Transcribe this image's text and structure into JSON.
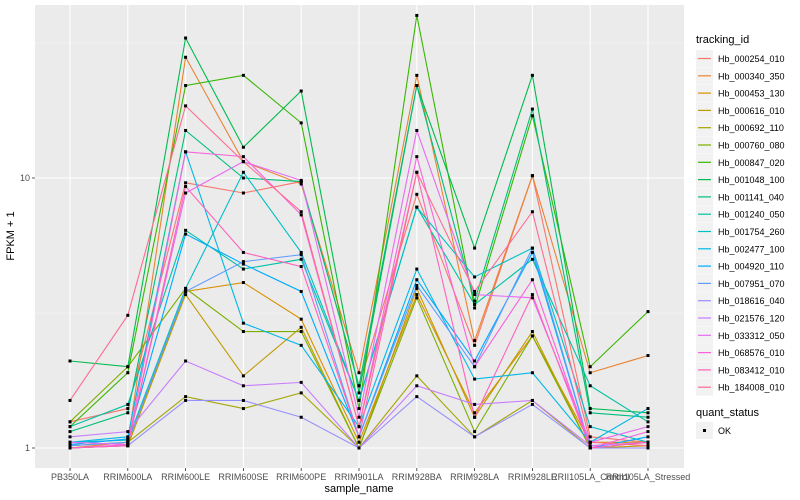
{
  "chart_data": {
    "type": "line",
    "title": "",
    "xlabel": "sample_name",
    "ylabel": "FPKM + 1",
    "yscale": "log10",
    "ylim": [
      0.9,
      45
    ],
    "yticks": [
      1,
      10
    ],
    "ytick_labels": [
      "1",
      "10"
    ],
    "grid": true,
    "legend_position": "right",
    "categories": [
      "PB350LA",
      "RRIM600LA",
      "RRIM600LE",
      "RRIM600SE",
      "RRIM600PE",
      "RRIM901LA",
      "RRIM928BA",
      "RRIM928LA",
      "RRIM928LE",
      "RRII105LA_Control",
      "RRII105LA_Stressed"
    ],
    "color_legend_title": "tracking_id",
    "shape_legend_title": "quant_status",
    "shape_legend_items": [
      {
        "label": "OK",
        "shape": "square"
      }
    ],
    "series": [
      {
        "name": "Hb_000254_010",
        "color": "#F8766D",
        "values": [
          1.25,
          1.4,
          9.6,
          8.8,
          9.7,
          1.7,
          8.7,
          2.4,
          10.2,
          1.1,
          1.05
        ]
      },
      {
        "name": "Hb_000340_350",
        "color": "#EA8331",
        "values": [
          1.0,
          1.05,
          28.0,
          11.5,
          9.5,
          1.9,
          24.0,
          2.5,
          10.2,
          1.9,
          2.2
        ]
      },
      {
        "name": "Hb_000453_130",
        "color": "#D89000",
        "values": [
          1.0,
          1.02,
          3.8,
          4.1,
          3.0,
          1.05,
          3.7,
          1.35,
          2.6,
          1.05,
          1.05
        ]
      },
      {
        "name": "Hb_000616_010",
        "color": "#C09B00",
        "values": [
          1.0,
          1.02,
          3.7,
          1.85,
          2.8,
          1.0,
          3.9,
          1.3,
          2.7,
          1.0,
          1.02
        ]
      },
      {
        "name": "Hb_000692_110",
        "color": "#A3A500",
        "values": [
          1.02,
          1.05,
          1.55,
          1.4,
          1.6,
          1.0,
          1.85,
          1.1,
          1.5,
          1.0,
          1.0
        ]
      },
      {
        "name": "Hb_000760_080",
        "color": "#7CAE00",
        "values": [
          1.25,
          2.0,
          3.9,
          2.7,
          2.7,
          1.0,
          3.6,
          1.15,
          2.6,
          1.0,
          1.0
        ]
      },
      {
        "name": "Hb_000847_020",
        "color": "#39B600",
        "values": [
          1.2,
          1.9,
          22.0,
          24.0,
          16.0,
          1.4,
          40.0,
          3.3,
          17.0,
          2.0,
          3.2
        ]
      },
      {
        "name": "Hb_001048_100",
        "color": "#00BB4E",
        "values": [
          2.1,
          2.0,
          33.0,
          13.0,
          21.0,
          1.6,
          22.0,
          5.5,
          24.0,
          1.4,
          1.35
        ]
      },
      {
        "name": "Hb_001141_040",
        "color": "#00BF7D",
        "values": [
          1.15,
          1.35,
          15.0,
          10.0,
          9.7,
          1.7,
          22.0,
          3.5,
          18.0,
          1.35,
          1.3
        ]
      },
      {
        "name": "Hb_001240_050",
        "color": "#00C1A3",
        "values": [
          1.2,
          1.45,
          6.4,
          4.6,
          5.0,
          1.5,
          7.8,
          3.4,
          5.0,
          1.7,
          1.25
        ]
      },
      {
        "name": "Hb_001754_260",
        "color": "#00BFC4",
        "values": [
          1.05,
          1.07,
          3.9,
          10.5,
          5.3,
          1.5,
          7.8,
          4.3,
          5.5,
          1.2,
          1.05
        ]
      },
      {
        "name": "Hb_002477_100",
        "color": "#00B8E7",
        "values": [
          1.05,
          1.1,
          12.5,
          2.9,
          2.4,
          1.2,
          4.6,
          1.8,
          1.9,
          1.05,
          1.4
        ]
      },
      {
        "name": "Hb_004920_110",
        "color": "#00A9FF",
        "values": [
          1.03,
          1.08,
          6.2,
          4.8,
          3.8,
          1.1,
          4.2,
          2.1,
          5.3,
          1.0,
          1.1
        ]
      },
      {
        "name": "Hb_007951_070",
        "color": "#619CFF",
        "values": [
          1.02,
          1.05,
          3.8,
          4.9,
          5.2,
          1.1,
          4.0,
          2.0,
          5.5,
          1.0,
          1.05
        ]
      },
      {
        "name": "Hb_018616_040",
        "color": "#9590FF",
        "values": [
          1.0,
          1.02,
          1.5,
          1.5,
          1.3,
          1.0,
          1.55,
          1.1,
          1.45,
          1.0,
          1.0
        ]
      },
      {
        "name": "Hb_021576_120",
        "color": "#C77CFF",
        "values": [
          1.1,
          1.15,
          2.1,
          1.7,
          1.75,
          1.0,
          1.7,
          1.45,
          1.5,
          1.02,
          1.05
        ]
      },
      {
        "name": "Hb_033312_050",
        "color": "#E76BF3",
        "values": [
          1.05,
          1.03,
          8.8,
          11.5,
          9.8,
          1.3,
          15.0,
          3.7,
          3.6,
          1.05,
          1.2
        ]
      },
      {
        "name": "Hb_068576_010",
        "color": "#FA62DB",
        "values": [
          1.0,
          1.03,
          12.5,
          12.0,
          7.3,
          1.2,
          12.0,
          2.0,
          4.2,
          1.0,
          1.15
        ]
      },
      {
        "name": "Hb_083412_010",
        "color": "#FF62BC",
        "values": [
          1.0,
          1.02,
          9.3,
          5.3,
          4.7,
          1.1,
          10.5,
          1.3,
          3.7,
          1.0,
          1.05
        ]
      },
      {
        "name": "Hb_184008_010",
        "color": "#FF6C91",
        "values": [
          1.5,
          3.1,
          18.5,
          11.5,
          7.5,
          1.2,
          10.5,
          3.8,
          7.5,
          1.05,
          1.02
        ]
      }
    ]
  }
}
